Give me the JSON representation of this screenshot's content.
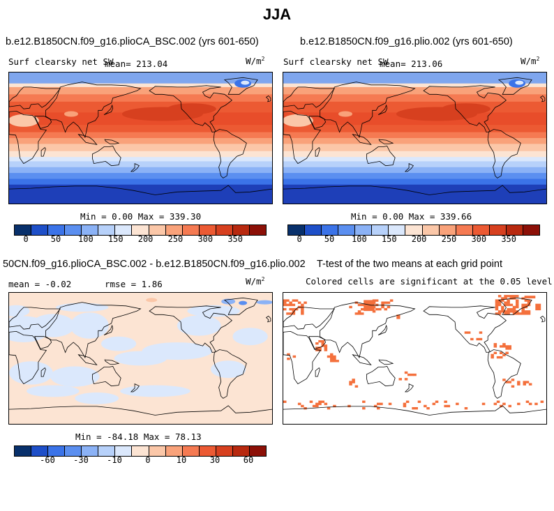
{
  "page_title": "JJA",
  "chart_data": [
    {
      "type": "heatmap",
      "title": "b.e12.B1850CN.f09_g16.plioCA_BSC.002 (yrs 601-650)",
      "variable": "Surf clearsky net SW",
      "mean_label": "mean= 213.04",
      "units": "W/m2",
      "stats": "Min =    0.00 Max = 339.30",
      "colorbar_ticks": [
        "0",
        "50",
        "100",
        "150",
        "200",
        "250",
        "300",
        "350"
      ],
      "zmin": 0.0,
      "zmax": 339.3,
      "mean": 213.04
    },
    {
      "type": "heatmap",
      "title": "b.e12.B1850CN.f09_g16.plio.002 (yrs 601-650)",
      "variable": "Surf clearsky net SW",
      "mean_label": "mean= 213.06",
      "units": "W/m2",
      "stats": "Min =    0.00 Max = 339.66",
      "colorbar_ticks": [
        "0",
        "50",
        "100",
        "150",
        "200",
        "250",
        "300",
        "350"
      ],
      "zmin": 0.0,
      "zmax": 339.66,
      "mean": 213.06
    },
    {
      "type": "heatmap",
      "title": "50CN.f09_g16.plioCA_BSC.002 - b.e12.B1850CN.f09_g16.plio.002",
      "mean_label": "mean =  -0.02",
      "rmse_label": "rmse =    1.86",
      "units": "W/m2",
      "stats": "Min = -84.18 Max =  78.13",
      "colorbar_ticks": [
        "-60",
        "-30",
        "-10",
        "0",
        "10",
        "30",
        "60"
      ],
      "zmin": -84.18,
      "zmax": 78.13,
      "mean": -0.02,
      "rmse": 1.86
    },
    {
      "type": "heatmap",
      "title": "T-test of the two means at each grid point",
      "subtitle": "Colored cells are significant at the 0.05 level",
      "significance_level": 0.05,
      "significant_color": "#f4703c"
    }
  ],
  "colors": {
    "abs_scale": [
      "#08306b",
      "#1e4fc8",
      "#3b73e8",
      "#5b8ff0",
      "#8bb2f6",
      "#b7d1fa",
      "#dbe8fc",
      "#fce4d3",
      "#fbc7a8",
      "#f9a27a",
      "#f57a52",
      "#ec5a33",
      "#d7401f",
      "#b8290f",
      "#8c1007"
    ],
    "diff_scale": [
      "#08306b",
      "#1e4fc8",
      "#3b73e8",
      "#5b8ff0",
      "#8bb2f6",
      "#b7d1fa",
      "#dbe8fc",
      "#fce4d3",
      "#fbc7a8",
      "#f9a27a",
      "#f57a52",
      "#ec5a33",
      "#d7401f",
      "#b8290f",
      "#8c1007"
    ]
  }
}
